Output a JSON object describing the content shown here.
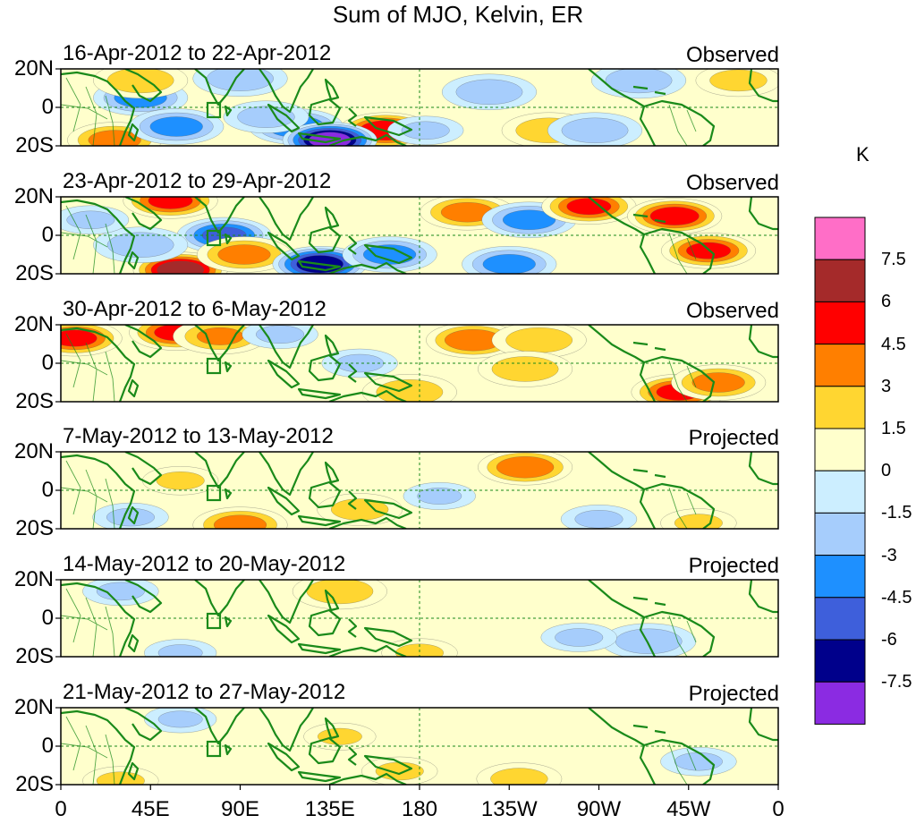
{
  "title": "Sum of MJO, Kelvin, ER",
  "units": "K",
  "lat_labels": [
    "20N",
    "0",
    "20S"
  ],
  "lon_labels": [
    "0",
    "45E",
    "90E",
    "135E",
    "180",
    "135W",
    "90W",
    "45W",
    "0"
  ],
  "colorbar": {
    "levels": [
      "7.5",
      "6",
      "4.5",
      "3",
      "1.5",
      "0",
      "-1.5",
      "-3",
      "-4.5",
      "-6",
      "-7.5"
    ],
    "colors": [
      "#ff6ec7",
      "#a52a2a",
      "#ff0000",
      "#ff7f00",
      "#ffd631",
      "#ffffcc",
      "#cceeff",
      "#a6cdfc",
      "#1e90ff",
      "#3e5fdb",
      "#00008b",
      "#8b2be2"
    ]
  },
  "panels": [
    {
      "date_range": "16-Apr-2012 to 22-Apr-2012",
      "status": "Observed"
    },
    {
      "date_range": "23-Apr-2012 to 29-Apr-2012",
      "status": "Observed"
    },
    {
      "date_range": "30-Apr-2012 to 6-May-2012",
      "status": "Observed"
    },
    {
      "date_range": "7-May-2012 to 13-May-2012",
      "status": "Projected"
    },
    {
      "date_range": "14-May-2012 to 20-May-2012",
      "status": "Projected"
    },
    {
      "date_range": "21-May-2012 to 27-May-2012",
      "status": "Projected"
    }
  ],
  "anomalies": [
    [
      {
        "lon": 118,
        "lat": -10,
        "v": -4.5
      },
      {
        "lon": 163,
        "lat": -12,
        "v": 6
      },
      {
        "lon": 135,
        "lat": -17,
        "v": -8
      },
      {
        "lon": 27,
        "lat": -17,
        "v": 4
      },
      {
        "lon": 40,
        "lat": 5,
        "v": -4
      },
      {
        "lon": 58,
        "lat": -10,
        "v": -4
      },
      {
        "lon": 90,
        "lat": 15,
        "v": -3
      },
      {
        "lon": 40,
        "lat": 14,
        "v": 3
      },
      {
        "lon": 103,
        "lat": -5,
        "v": -2.5
      },
      {
        "lon": 215,
        "lat": 8,
        "v": -3
      },
      {
        "lon": 245,
        "lat": -12,
        "v": 3
      },
      {
        "lon": 290,
        "lat": 14,
        "v": -3
      },
      {
        "lon": 340,
        "lat": 14,
        "v": 2.5
      },
      {
        "lon": 268,
        "lat": -12,
        "v": -3
      },
      {
        "lon": 183,
        "lat": -12,
        "v": -2
      }
    ],
    [
      {
        "lon": 55,
        "lat": 18,
        "v": 5
      },
      {
        "lon": 82,
        "lat": 0,
        "v": -5
      },
      {
        "lon": 60,
        "lat": -18,
        "v": 7
      },
      {
        "lon": 92,
        "lat": -10,
        "v": 4
      },
      {
        "lon": 130,
        "lat": -15,
        "v": -7
      },
      {
        "lon": 165,
        "lat": -10,
        "v": -4
      },
      {
        "lon": 204,
        "lat": 12,
        "v": 4
      },
      {
        "lon": 235,
        "lat": 8,
        "v": -4
      },
      {
        "lon": 265,
        "lat": 15,
        "v": 5
      },
      {
        "lon": 308,
        "lat": 10,
        "v": 5.5
      },
      {
        "lon": 325,
        "lat": -8,
        "v": 5
      },
      {
        "lon": 225,
        "lat": -15,
        "v": -4
      },
      {
        "lon": 40,
        "lat": -5,
        "v": -3
      },
      {
        "lon": 15,
        "lat": 8,
        "v": -2
      }
    ],
    [
      {
        "lon": 7,
        "lat": 13,
        "v": 5
      },
      {
        "lon": 58,
        "lat": 16,
        "v": 5
      },
      {
        "lon": 80,
        "lat": 14,
        "v": 3.5
      },
      {
        "lon": 207,
        "lat": 12,
        "v": 4.5
      },
      {
        "lon": 240,
        "lat": 12,
        "v": 3
      },
      {
        "lon": 310,
        "lat": -15,
        "v": 5
      },
      {
        "lon": 330,
        "lat": -10,
        "v": 4
      },
      {
        "lon": 150,
        "lat": 0,
        "v": -2
      },
      {
        "lon": 110,
        "lat": 15,
        "v": -2
      },
      {
        "lon": 175,
        "lat": -15,
        "v": 3
      },
      {
        "lon": 233,
        "lat": -3,
        "v": 3
      }
    ],
    [
      {
        "lon": 233,
        "lat": 12,
        "v": 4.5
      },
      {
        "lon": 90,
        "lat": -18,
        "v": 4
      },
      {
        "lon": 60,
        "lat": 5,
        "v": 2
      },
      {
        "lon": 150,
        "lat": -10,
        "v": 2.5
      },
      {
        "lon": 270,
        "lat": -15,
        "v": -2
      },
      {
        "lon": 320,
        "lat": -17,
        "v": 2
      },
      {
        "lon": 190,
        "lat": -3,
        "v": -1.8
      },
      {
        "lon": 35,
        "lat": -14,
        "v": -2
      }
    ],
    [
      {
        "lon": 140,
        "lat": 14,
        "v": 3
      },
      {
        "lon": 295,
        "lat": -12,
        "v": -3
      },
      {
        "lon": 260,
        "lat": -10,
        "v": -2
      },
      {
        "lon": 180,
        "lat": -18,
        "v": 2
      },
      {
        "lon": 60,
        "lat": -18,
        "v": -1.8
      },
      {
        "lon": 30,
        "lat": 14,
        "v": -2
      }
    ],
    [
      {
        "lon": 230,
        "lat": -17,
        "v": 2.5
      },
      {
        "lon": 170,
        "lat": -13,
        "v": 2
      },
      {
        "lon": 30,
        "lat": -18,
        "v": 2
      },
      {
        "lon": 140,
        "lat": 5,
        "v": 1.8
      },
      {
        "lon": 320,
        "lat": -8,
        "v": -2
      },
      {
        "lon": 60,
        "lat": 14,
        "v": -1.8
      }
    ]
  ]
}
